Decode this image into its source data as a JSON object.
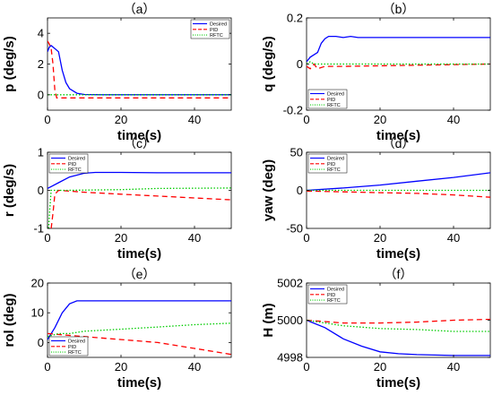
{
  "colors": {
    "desired": "#0000ff",
    "pid": "#ff0000",
    "rftc": "#00cc00"
  },
  "chart_data": [
    {
      "type": "line",
      "title": "（a）",
      "xlabel": "time(s)",
      "ylabel": "p (deg/s)",
      "xlim": [
        0,
        50
      ],
      "ylim": [
        -1,
        5
      ],
      "xticks": [
        0,
        20,
        40
      ],
      "xticklabels": [
        "0",
        "20",
        "40"
      ],
      "yticks": [
        0,
        2,
        4
      ],
      "yticklabels": [
        "0",
        "2",
        "4"
      ],
      "legend": [
        "Desired",
        "PID",
        "RFTC"
      ],
      "legend_position": "top-right",
      "series": [
        {
          "name": "Desired",
          "style": "solid",
          "points": [
            [
              0,
              2.8
            ],
            [
              0.5,
              3.1
            ],
            [
              1,
              3.2
            ],
            [
              2,
              3.0
            ],
            [
              3,
              2.8
            ],
            [
              4,
              1.6
            ],
            [
              5,
              0.8
            ],
            [
              6,
              0.4
            ],
            [
              8,
              0.1
            ],
            [
              10,
              0.02
            ],
            [
              15,
              0
            ],
            [
              50,
              0
            ]
          ]
        },
        {
          "name": "PID",
          "style": "dashed",
          "points": [
            [
              0,
              3.5
            ],
            [
              0.5,
              3.3
            ],
            [
              1,
              3.0
            ],
            [
              1.5,
              2.0
            ],
            [
              2,
              0.3
            ],
            [
              2.5,
              -0.2
            ],
            [
              5,
              -0.2
            ],
            [
              50,
              -0.2
            ]
          ]
        },
        {
          "name": "RFTC",
          "style": "dotted",
          "points": [
            [
              0,
              0
            ],
            [
              50,
              0
            ]
          ]
        }
      ]
    },
    {
      "type": "line",
      "title": "（b）",
      "xlabel": "time(s)",
      "ylabel": "q (deg/s)",
      "xlim": [
        0,
        50
      ],
      "ylim": [
        -0.2,
        0.2
      ],
      "xticks": [
        0,
        20,
        40
      ],
      "xticklabels": [
        "0",
        "20",
        "40"
      ],
      "yticks": [
        -0.2,
        0,
        0.2
      ],
      "yticklabels": [
        "-0.2",
        "0",
        "0.2"
      ],
      "legend": [
        "Desired",
        "PID",
        "RFTC"
      ],
      "legend_position": "bottom-left",
      "series": [
        {
          "name": "Desired",
          "style": "solid",
          "points": [
            [
              0,
              0.01
            ],
            [
              1,
              0.03
            ],
            [
              2,
              0.04
            ],
            [
              3,
              0.05
            ],
            [
              4,
              0.09
            ],
            [
              5,
              0.11
            ],
            [
              6,
              0.12
            ],
            [
              8,
              0.12
            ],
            [
              10,
              0.115
            ],
            [
              12,
              0.12
            ],
            [
              14,
              0.115
            ],
            [
              50,
              0.115
            ]
          ]
        },
        {
          "name": "PID",
          "style": "dashed",
          "points": [
            [
              0,
              -0.01
            ],
            [
              1,
              -0.02
            ],
            [
              2,
              0.0
            ],
            [
              3,
              -0.02
            ],
            [
              5,
              -0.01
            ],
            [
              10,
              -0.01
            ],
            [
              50,
              0.0
            ]
          ]
        },
        {
          "name": "RFTC",
          "style": "dotted",
          "points": [
            [
              0,
              0.0
            ],
            [
              1,
              0.01
            ],
            [
              2,
              0.0
            ],
            [
              5,
              0.0
            ],
            [
              50,
              0.0
            ]
          ]
        }
      ]
    },
    {
      "type": "line",
      "title": "（c）",
      "xlabel": "time(s)",
      "ylabel": "r (deg/s)",
      "xlim": [
        0,
        50
      ],
      "ylim": [
        -1,
        1
      ],
      "xticks": [
        0,
        20,
        40
      ],
      "xticklabels": [
        "0",
        "20",
        "40"
      ],
      "yticks": [
        -1,
        0,
        1
      ],
      "yticklabels": [
        "-1",
        "0",
        "1"
      ],
      "legend": [
        "Desired",
        "PID",
        "RFTC"
      ],
      "legend_position": "top-left",
      "series": [
        {
          "name": "Desired",
          "style": "solid",
          "points": [
            [
              0,
              0.05
            ],
            [
              1,
              0.1
            ],
            [
              3,
              0.2
            ],
            [
              6,
              0.35
            ],
            [
              10,
              0.45
            ],
            [
              13,
              0.47
            ],
            [
              20,
              0.47
            ],
            [
              30,
              0.46
            ],
            [
              50,
              0.46
            ]
          ]
        },
        {
          "name": "PID",
          "style": "dashed",
          "points": [
            [
              1,
              -1.0
            ],
            [
              1.5,
              -0.6
            ],
            [
              2,
              -0.1
            ],
            [
              3,
              0.0
            ],
            [
              10,
              -0.05
            ],
            [
              20,
              -0.1
            ],
            [
              30,
              -0.15
            ],
            [
              40,
              -0.2
            ],
            [
              50,
              -0.25
            ]
          ]
        },
        {
          "name": "RFTC",
          "style": "dotted",
          "points": [
            [
              0.3,
              -1.0
            ],
            [
              0.6,
              -0.5
            ],
            [
              1,
              0.0
            ],
            [
              5,
              0.0
            ],
            [
              20,
              0.02
            ],
            [
              30,
              0.05
            ],
            [
              50,
              0.06
            ]
          ]
        }
      ]
    },
    {
      "type": "line",
      "title": "（d）",
      "xlabel": "time(s)",
      "ylabel": "yaw (deg)",
      "xlim": [
        0,
        50
      ],
      "ylim": [
        -50,
        50
      ],
      "xticks": [
        0,
        20,
        40
      ],
      "xticklabels": [
        "0",
        "20",
        "40"
      ],
      "yticks": [
        -50,
        0,
        50
      ],
      "yticklabels": [
        "-50",
        "0",
        "50"
      ],
      "legend": [
        "Desired",
        "PID",
        "RFTC"
      ],
      "legend_position": "top-left",
      "series": [
        {
          "name": "Desired",
          "style": "solid",
          "points": [
            [
              0,
              0
            ],
            [
              10,
              3
            ],
            [
              20,
              7
            ],
            [
              30,
              12
            ],
            [
              40,
              17
            ],
            [
              50,
              23
            ]
          ]
        },
        {
          "name": "PID",
          "style": "dashed",
          "points": [
            [
              0,
              -1
            ],
            [
              10,
              -2
            ],
            [
              20,
              -3
            ],
            [
              30,
              -4
            ],
            [
              40,
              -6
            ],
            [
              50,
              -9
            ]
          ]
        },
        {
          "name": "RFTC",
          "style": "dotted",
          "points": [
            [
              0,
              0
            ],
            [
              50,
              0
            ]
          ]
        }
      ]
    },
    {
      "type": "line",
      "title": "（e）",
      "xlabel": "time(s)",
      "ylabel": "rol (deg)",
      "xlim": [
        0,
        50
      ],
      "ylim": [
        -5,
        20
      ],
      "xticks": [
        0,
        20,
        40
      ],
      "xticklabels": [
        "0",
        "20",
        "40"
      ],
      "yticks": [
        0,
        10,
        20
      ],
      "yticklabels": [
        "0",
        "10",
        "20"
      ],
      "legend": [
        "Desired",
        "PID",
        "RFTC"
      ],
      "legend_position": "bottom-left",
      "series": [
        {
          "name": "Desired",
          "style": "solid",
          "points": [
            [
              0,
              1
            ],
            [
              2,
              5
            ],
            [
              4,
              10
            ],
            [
              6,
              13
            ],
            [
              8,
              14
            ],
            [
              10,
              14
            ],
            [
              20,
              14
            ],
            [
              50,
              14
            ]
          ]
        },
        {
          "name": "PID",
          "style": "dashed",
          "points": [
            [
              0,
              3
            ],
            [
              5,
              2.5
            ],
            [
              10,
              2
            ],
            [
              20,
              1
            ],
            [
              30,
              0
            ],
            [
              40,
              -2
            ],
            [
              50,
              -4
            ]
          ]
        },
        {
          "name": "RFTC",
          "style": "dotted",
          "points": [
            [
              0,
              2
            ],
            [
              3,
              3
            ],
            [
              6,
              3
            ],
            [
              10,
              3.8
            ],
            [
              20,
              4.5
            ],
            [
              30,
              5.2
            ],
            [
              40,
              6
            ],
            [
              50,
              6.5
            ]
          ]
        }
      ]
    },
    {
      "type": "line",
      "title": "（f）",
      "xlabel": "time(s)",
      "ylabel": "H (m)",
      "xlim": [
        0,
        50
      ],
      "ylim": [
        4998,
        5002
      ],
      "xticks": [
        0,
        20,
        40
      ],
      "xticklabels": [
        "0",
        "20",
        "40"
      ],
      "yticks": [
        4998,
        5000,
        5002
      ],
      "yticklabels": [
        "4998",
        "5000",
        "5002"
      ],
      "legend": [
        "Desired",
        "PID",
        "RFTC"
      ],
      "legend_position": "top-left",
      "series": [
        {
          "name": "Desired",
          "style": "solid",
          "points": [
            [
              0,
              5000
            ],
            [
              5,
              4999.6
            ],
            [
              10,
              4999
            ],
            [
              15,
              4998.6
            ],
            [
              20,
              4998.3
            ],
            [
              25,
              4998.2
            ],
            [
              30,
              4998.15
            ],
            [
              40,
              4998.1
            ],
            [
              50,
              4998.1
            ]
          ]
        },
        {
          "name": "PID",
          "style": "dashed",
          "points": [
            [
              0,
              5000
            ],
            [
              10,
              4999.85
            ],
            [
              20,
              4999.85
            ],
            [
              30,
              4999.9
            ],
            [
              40,
              5000
            ],
            [
              50,
              5000.05
            ]
          ]
        },
        {
          "name": "RFTC",
          "style": "dotted",
          "points": [
            [
              0,
              5000
            ],
            [
              10,
              4999.7
            ],
            [
              20,
              4999.55
            ],
            [
              30,
              4999.5
            ],
            [
              40,
              4999.4
            ],
            [
              50,
              4999.4
            ]
          ]
        }
      ]
    }
  ]
}
